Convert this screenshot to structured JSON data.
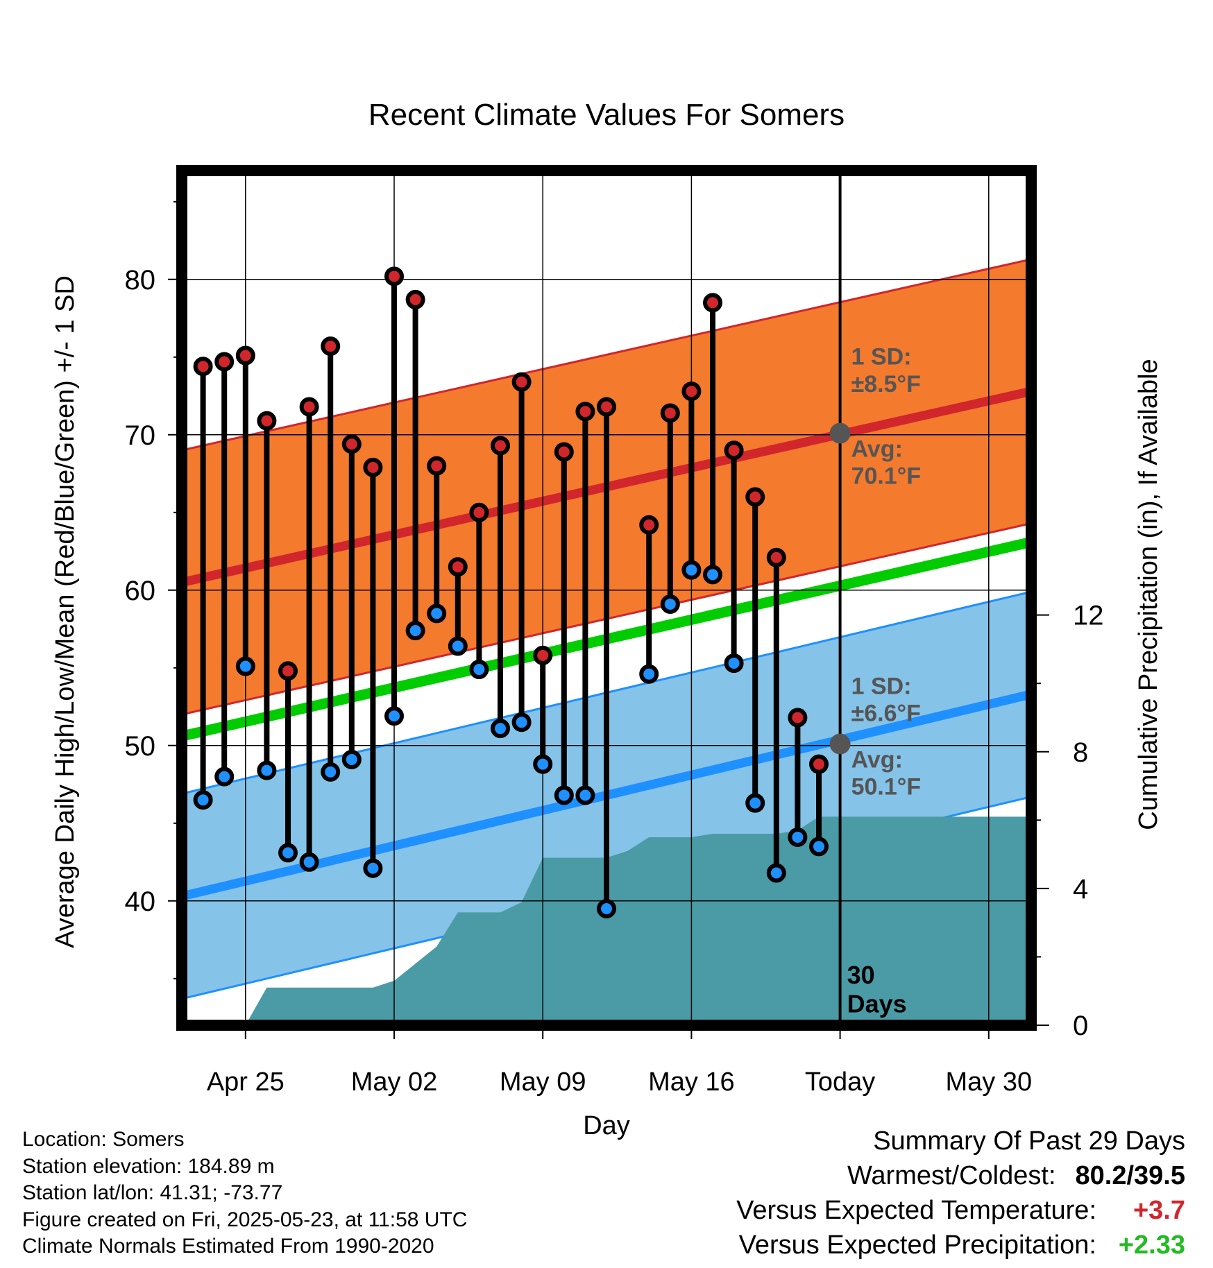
{
  "chart_data": {
    "type": "line",
    "title": "Recent Climate Values For Somers",
    "xlabel": "Day",
    "ylabel": "Average Daily High/Low/Mean (Red/Blue/Green) +/- 1 SD",
    "y2label": "Cumulative Precipitation (in), If Available",
    "x_tick_labels": [
      "Apr 25",
      "May 02",
      "May 09",
      "May 16",
      "Today",
      "May 30"
    ],
    "x_ticks": [
      "2025-04-25",
      "2025-05-02",
      "2025-05-09",
      "2025-05-16",
      "2025-05-23",
      "2025-05-30"
    ],
    "xlim": [
      "2025-04-22",
      "2025-06-01"
    ],
    "ylim": [
      32,
      87
    ],
    "y_ticks": [
      40,
      50,
      60,
      70,
      80
    ],
    "y2lim": [
      0,
      25
    ],
    "y2_ticks": [
      0,
      4,
      8,
      12
    ],
    "grid": true,
    "today": "2025-05-23",
    "today_label": "30\nDays",
    "normals": {
      "dates": [
        "2025-04-22",
        "2025-06-01"
      ],
      "high_avg": [
        60.5,
        72.8
      ],
      "high_sd": 8.5,
      "low_avg": [
        40.3,
        53.3
      ],
      "low_sd": 6.6,
      "mean_avg": [
        50.6,
        63.1
      ]
    },
    "annotations": {
      "high_sd_label": "1 SD:\n±8.5°F",
      "high_avg_label": "Avg:\n70.1°F",
      "high_avg_today": 70.1,
      "low_sd_label": "1 SD:\n±6.6°F",
      "low_avg_label": "Avg:\n50.1°F",
      "low_avg_today": 50.1
    },
    "daily": {
      "dates": [
        "2025-04-23",
        "2025-04-24",
        "2025-04-25",
        "2025-04-26",
        "2025-04-27",
        "2025-04-28",
        "2025-04-29",
        "2025-04-30",
        "2025-05-01",
        "2025-05-02",
        "2025-05-03",
        "2025-05-04",
        "2025-05-05",
        "2025-05-06",
        "2025-05-07",
        "2025-05-08",
        "2025-05-09",
        "2025-05-10",
        "2025-05-11",
        "2025-05-12",
        "2025-05-14",
        "2025-05-15",
        "2025-05-16",
        "2025-05-17",
        "2025-05-18",
        "2025-05-19",
        "2025-05-20",
        "2025-05-21",
        "2025-05-22"
      ],
      "high": [
        74.4,
        74.7,
        75.1,
        70.9,
        54.8,
        71.8,
        75.7,
        69.4,
        67.9,
        80.2,
        78.7,
        68.0,
        61.5,
        65.0,
        69.3,
        73.4,
        55.8,
        68.9,
        71.5,
        71.8,
        64.2,
        71.4,
        72.8,
        78.5,
        69.0,
        66.0,
        62.1,
        51.8,
        48.8
      ],
      "low": [
        46.5,
        48.0,
        55.1,
        48.4,
        43.1,
        42.5,
        48.3,
        49.1,
        42.1,
        51.9,
        57.4,
        58.5,
        56.4,
        54.9,
        51.1,
        51.5,
        48.8,
        46.8,
        46.8,
        39.5,
        54.6,
        59.1,
        61.3,
        61.0,
        55.3,
        46.3,
        41.8,
        44.1,
        43.5
      ]
    },
    "precip": {
      "dates": [
        "2025-04-22",
        "2025-04-24",
        "2025-04-25",
        "2025-04-26",
        "2025-04-27",
        "2025-04-28",
        "2025-04-29",
        "2025-04-30",
        "2025-05-01",
        "2025-05-02",
        "2025-05-03",
        "2025-05-04",
        "2025-05-05",
        "2025-05-06",
        "2025-05-07",
        "2025-05-08",
        "2025-05-09",
        "2025-05-10",
        "2025-05-11",
        "2025-05-12",
        "2025-05-13",
        "2025-05-14",
        "2025-05-15",
        "2025-05-16",
        "2025-05-17",
        "2025-05-18",
        "2025-05-19",
        "2025-05-20",
        "2025-05-21",
        "2025-05-22",
        "2025-06-01"
      ],
      "cumulative": [
        0,
        0,
        0,
        1.1,
        1.1,
        1.1,
        1.1,
        1.1,
        1.1,
        1.3,
        1.8,
        2.3,
        3.3,
        3.3,
        3.3,
        3.6,
        4.9,
        4.9,
        4.9,
        4.9,
        5.1,
        5.5,
        5.5,
        5.5,
        5.6,
        5.6,
        5.6,
        5.6,
        5.7,
        6.1,
        6.1
      ]
    },
    "colors": {
      "high": "#d0262c",
      "high_band": "#f47a2e",
      "low": "#1e90ff",
      "low_band": "#86c3e8",
      "mean": "#00cc00",
      "precip": "#4a9ba5",
      "annotation": "#555555"
    }
  },
  "info": {
    "location": "Location: Somers",
    "elevation": "Station elevation: 184.89 m",
    "latlon": "Station lat/lon: 41.31; -73.77",
    "created": "Figure created on Fri, 2025-05-23, at 11:58 UTC",
    "normals": "Climate Normals Estimated From 1990-2020"
  },
  "summary": {
    "title": "Summary Of Past 29 Days",
    "extremes_label": "Warmest/Coldest:",
    "extremes_value": "80.2/39.5",
    "temp_label": "Versus Expected Temperature:",
    "temp_value": "+3.7",
    "temp_color": "#d0262c",
    "precip_label": "Versus Expected Precipitation:",
    "precip_value": "+2.33",
    "precip_color": "#22bb22"
  }
}
